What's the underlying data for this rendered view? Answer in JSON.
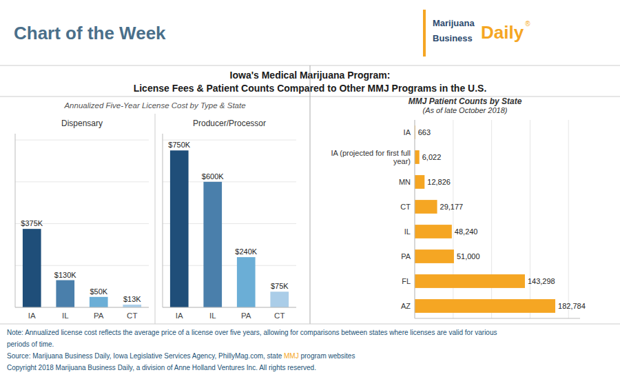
{
  "title": "Iowa's Medical Marijuana Program:",
  "subtitle": "License Fees & Patient Counts Compared to Other MMJ Programs in the U.S.",
  "annotations": [
    {
      "text": "Chart of the Week",
      "color": "#4a6f8a"
    },
    {
      "text": "Marijuana",
      "color": "#2c4a6e"
    },
    {
      "text": "Business",
      "color": "#2c4a6e"
    },
    {
      "text": "Daily",
      "color": "#f5a623"
    },
    {
      "text": "®",
      "color": "#f5a623"
    },
    {
      "text": "Annualized Five-Year License Cost by Type & State",
      "color": "#555555"
    },
    {
      "text": "Note: Annualized license cost reflects the average price of a license over five years, allowing for comparisons between states where licenses are valid for various",
      "color": "#1a5276"
    },
    {
      "text": "periods of time.",
      "color": "#1a5276"
    },
    {
      "text": "Source: Marijuana Business Daily, Iowa Legislative Services Agency, PhillyMag.com, state MMJ program websites",
      "color": "#1a5276",
      "highlight": "MMJ",
      "highlight_color": "#f5a623"
    },
    {
      "text": "Copyright 2018 Marijuana Business Daily, a division of Anne Holland Ventures Inc. All rights reserved.",
      "color": "#1a5276"
    }
  ],
  "chart_data": [
    {
      "type": "bar",
      "title": "Dispensary",
      "categories": [
        "IA",
        "IL",
        "PA",
        "CT"
      ],
      "values": [
        375000,
        130000,
        50000,
        13000
      ],
      "value_labels": [
        "$375K",
        "$130K",
        "$50K",
        "$13K"
      ],
      "colors": [
        "#1f4e79",
        "#4a7fab",
        "#6baed6",
        "#aacde8"
      ],
      "ylim": [
        0,
        830000
      ],
      "yticks": [
        0,
        200000,
        400000,
        600000,
        800000
      ],
      "grid": true,
      "data_labels": true,
      "tick_labels": "x"
    },
    {
      "type": "bar",
      "title": "Producer/Processor",
      "categories": [
        "IA",
        "IL",
        "PA",
        "CT"
      ],
      "values": [
        750000,
        600000,
        240000,
        75000
      ],
      "value_labels": [
        "$750K",
        "$600K",
        "$240K",
        "$75K"
      ],
      "colors": [
        "#1f4e79",
        "#4a7fab",
        "#6baed6",
        "#aacde8"
      ],
      "ylim": [
        0,
        830000
      ],
      "yticks": [
        0,
        200000,
        400000,
        600000,
        800000
      ],
      "grid": true,
      "data_labels": true,
      "tick_labels": "x"
    },
    {
      "type": "bar",
      "orientation": "horizontal",
      "title": "MMJ Patient Counts by State",
      "subtitle": "(As of late October 2018)",
      "categories": [
        "IA",
        "IA (projected for first full\nyear)",
        "MN",
        "CT",
        "IL",
        "PA",
        "FL",
        "AZ"
      ],
      "values": [
        663,
        6022,
        12826,
        29177,
        48240,
        51000,
        143298,
        182784
      ],
      "value_labels": [
        "663",
        "6,022",
        "12,826",
        "29,177",
        "48,240",
        "51,000",
        "143,298",
        "182,784"
      ],
      "color": "#f5a623",
      "xlim": [
        0,
        215000
      ],
      "xticks": [
        0,
        50000,
        100000,
        150000,
        200000
      ],
      "grid": true,
      "data_labels": true,
      "tick_labels": "y"
    }
  ]
}
